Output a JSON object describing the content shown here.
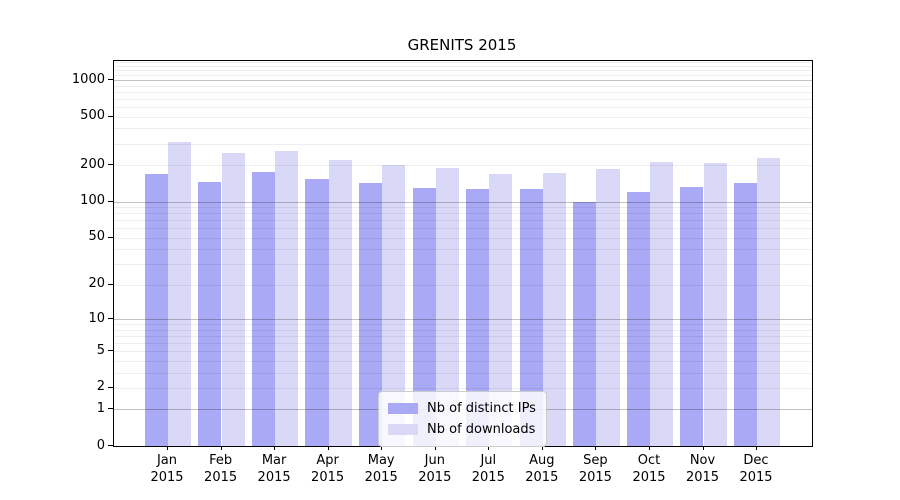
{
  "chart_data": {
    "type": "bar",
    "title": "GRENITS 2015",
    "scale": "log1p",
    "ylim": [
      0,
      1431
    ],
    "grid": true,
    "legend_position": "lower center (inside plot)",
    "categories": [
      {
        "month": "Jan",
        "year": "2015"
      },
      {
        "month": "Feb",
        "year": "2015"
      },
      {
        "month": "Mar",
        "year": "2015"
      },
      {
        "month": "Apr",
        "year": "2015"
      },
      {
        "month": "May",
        "year": "2015"
      },
      {
        "month": "Jun",
        "year": "2015"
      },
      {
        "month": "Jul",
        "year": "2015"
      },
      {
        "month": "Aug",
        "year": "2015"
      },
      {
        "month": "Sep",
        "year": "2015"
      },
      {
        "month": "Oct",
        "year": "2015"
      },
      {
        "month": "Nov",
        "year": "2015"
      },
      {
        "month": "Dec",
        "year": "2015"
      }
    ],
    "series": [
      {
        "name": "Nb of distinct IPs",
        "color": "#a9a9f5",
        "values": [
          170,
          145,
          175,
          155,
          143,
          130,
          126,
          128,
          100,
          121,
          132,
          143
        ]
      },
      {
        "name": "Nb of downloads",
        "color": "#d9d9f7",
        "values": [
          310,
          250,
          260,
          220,
          200,
          188,
          170,
          173,
          185,
          214,
          209,
          227
        ]
      }
    ],
    "yticks": [
      {
        "value": 0,
        "label": "0"
      },
      {
        "value": 1,
        "label": "1"
      },
      {
        "value": 2,
        "label": "2"
      },
      {
        "value": 5,
        "label": "5"
      },
      {
        "value": 10,
        "label": "10"
      },
      {
        "value": 20,
        "label": "20"
      },
      {
        "value": 50,
        "label": "50"
      },
      {
        "value": 100,
        "label": "100"
      },
      {
        "value": 200,
        "label": "200"
      },
      {
        "value": 500,
        "label": "500"
      },
      {
        "value": 1000,
        "label": "1000"
      }
    ],
    "major_gridlines": [
      1,
      10,
      100,
      1000
    ],
    "minor_gridlines": [
      2,
      3,
      4,
      5,
      6,
      7,
      8,
      9,
      20,
      30,
      40,
      50,
      60,
      70,
      80,
      90,
      200,
      300,
      400,
      500,
      600,
      700,
      800,
      900,
      1100,
      1200,
      1300,
      1400
    ]
  }
}
